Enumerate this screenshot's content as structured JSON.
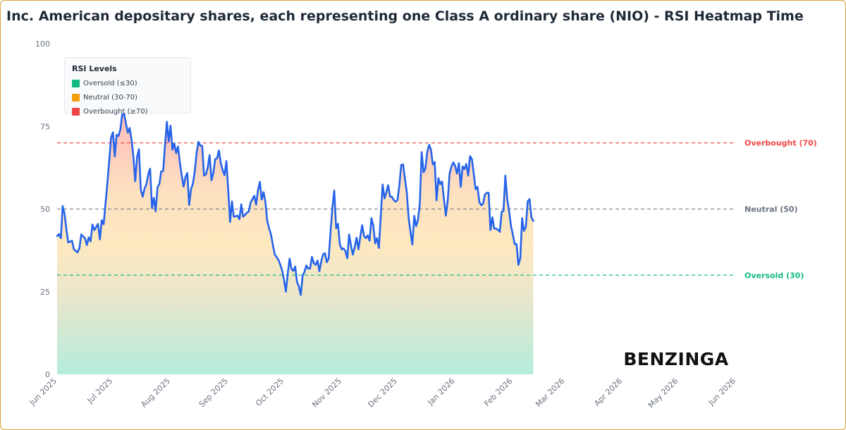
{
  "title": "Inc. American depositary shares, each representing one Class A ordinary share (NIO) - RSI Heatmap Time",
  "brand": "BENZINGA",
  "legend": {
    "title": "RSI Levels",
    "items": [
      {
        "label": "Oversold (≤30)",
        "color": "#10b981"
      },
      {
        "label": "Neutral (30-70)",
        "color": "#f59e0b"
      },
      {
        "label": "Overbought (≥70)",
        "color": "#ef4444"
      }
    ]
  },
  "chart_data": {
    "type": "area",
    "title": "Inc. American depositary shares, each representing one Class A ordinary share (NIO) - RSI Heatmap Time",
    "xlabel": "",
    "ylabel": "",
    "ylim": [
      0,
      100
    ],
    "yticks": [
      "0",
      "25",
      "50",
      "75",
      "100"
    ],
    "x_range": [
      "2025-06-01",
      "2026-06-01"
    ],
    "xticks": [
      {
        "label": "Jun 2025",
        "date": "2025-06-01"
      },
      {
        "label": "Jul 2025",
        "date": "2025-07-01"
      },
      {
        "label": "Aug 2025",
        "date": "2025-08-01"
      },
      {
        "label": "Sep 2025",
        "date": "2025-09-01"
      },
      {
        "label": "Oct 2025",
        "date": "2025-10-01"
      },
      {
        "label": "Nov 2025",
        "date": "2025-11-01"
      },
      {
        "label": "Dec 2025",
        "date": "2025-12-01"
      },
      {
        "label": "Jan 2026",
        "date": "2026-01-01"
      },
      {
        "label": "Feb 2026",
        "date": "2026-02-01"
      },
      {
        "label": "Mar 2026",
        "date": "2026-03-01"
      },
      {
        "label": "Apr 2026",
        "date": "2026-04-01"
      },
      {
        "label": "May 2026",
        "date": "2026-05-01"
      },
      {
        "label": "Jun 2026",
        "date": "2026-06-01"
      }
    ],
    "reference_lines": [
      {
        "label": "Overbought (70)",
        "value": 70,
        "color": "#ef4444"
      },
      {
        "label": "Neutral (50)",
        "value": 50,
        "color": "#6b7280"
      },
      {
        "label": "Oversold (30)",
        "value": 30,
        "color": "#10b981"
      }
    ],
    "line_color": "#2563eb",
    "grid": false,
    "legend_position": "top-left",
    "series": [
      {
        "points": [
          [
            "2025-06-01",
            41.8
          ],
          [
            "2025-06-02",
            42.4
          ],
          [
            "2025-06-03",
            41.2
          ],
          [
            "2025-06-04",
            50.9
          ],
          [
            "2025-06-05",
            48.5
          ],
          [
            "2025-06-06",
            43.8
          ],
          [
            "2025-06-07",
            39.9
          ],
          [
            "2025-06-09",
            40.4
          ],
          [
            "2025-06-10",
            37.9
          ],
          [
            "2025-06-11",
            37.3
          ],
          [
            "2025-06-12",
            36.9
          ],
          [
            "2025-06-13",
            38.2
          ],
          [
            "2025-06-14",
            42.3
          ],
          [
            "2025-06-16",
            41.1
          ],
          [
            "2025-06-17",
            39.1
          ],
          [
            "2025-06-18",
            41.4
          ],
          [
            "2025-06-19",
            40.2
          ],
          [
            "2025-06-20",
            45.3
          ],
          [
            "2025-06-21",
            43.6
          ],
          [
            "2025-06-23",
            45.5
          ],
          [
            "2025-06-24",
            40.8
          ],
          [
            "2025-06-25",
            46.6
          ],
          [
            "2025-06-26",
            45.4
          ],
          [
            "2025-06-28",
            57.6
          ],
          [
            "2025-06-29",
            64.6
          ],
          [
            "2025-06-30",
            71.5
          ],
          [
            "2025-07-01",
            73.2
          ],
          [
            "2025-07-02",
            65.9
          ],
          [
            "2025-07-03",
            72.4
          ],
          [
            "2025-07-04",
            72.1
          ],
          [
            "2025-07-05",
            74.1
          ],
          [
            "2025-07-06",
            78.5
          ],
          [
            "2025-07-07",
            78.9
          ],
          [
            "2025-07-08",
            75.9
          ],
          [
            "2025-07-09",
            73.1
          ],
          [
            "2025-07-10",
            74.5
          ],
          [
            "2025-07-11",
            71.1
          ],
          [
            "2025-07-12",
            65.9
          ],
          [
            "2025-07-13",
            58.4
          ],
          [
            "2025-07-14",
            65.7
          ],
          [
            "2025-07-15",
            68.1
          ],
          [
            "2025-07-16",
            55.9
          ],
          [
            "2025-07-17",
            53.7
          ],
          [
            "2025-07-18",
            56.2
          ],
          [
            "2025-07-19",
            57.4
          ],
          [
            "2025-07-20",
            60.5
          ],
          [
            "2025-07-21",
            62.2
          ],
          [
            "2025-07-22",
            50.3
          ],
          [
            "2025-07-23",
            53.4
          ],
          [
            "2025-07-24",
            49.3
          ],
          [
            "2025-07-25",
            56.6
          ],
          [
            "2025-07-26",
            57.6
          ],
          [
            "2025-07-27",
            61.4
          ],
          [
            "2025-07-28",
            61.5
          ],
          [
            "2025-07-29",
            69.1
          ],
          [
            "2025-07-30",
            76.4
          ],
          [
            "2025-07-31",
            70.4
          ],
          [
            "2025-08-01",
            75.2
          ],
          [
            "2025-08-02",
            67.9
          ],
          [
            "2025-08-03",
            69.9
          ],
          [
            "2025-08-04",
            66.9
          ],
          [
            "2025-08-05",
            68.9
          ],
          [
            "2025-08-06",
            64.1
          ],
          [
            "2025-08-07",
            60.1
          ],
          [
            "2025-08-08",
            56.8
          ],
          [
            "2025-08-09",
            59.6
          ],
          [
            "2025-08-10",
            60.9
          ],
          [
            "2025-08-11",
            51.2
          ],
          [
            "2025-08-12",
            56.1
          ],
          [
            "2025-08-13",
            57.6
          ],
          [
            "2025-08-14",
            61.3
          ],
          [
            "2025-08-15",
            66.9
          ],
          [
            "2025-08-16",
            70.3
          ],
          [
            "2025-08-17",
            69.2
          ],
          [
            "2025-08-18",
            69.1
          ],
          [
            "2025-08-19",
            60.1
          ],
          [
            "2025-08-20",
            60.5
          ],
          [
            "2025-08-21",
            62.6
          ],
          [
            "2025-08-22",
            66.3
          ],
          [
            "2025-08-23",
            58.7
          ],
          [
            "2025-08-24",
            60.9
          ],
          [
            "2025-08-25",
            65.1
          ],
          [
            "2025-08-26",
            65.3
          ],
          [
            "2025-08-27",
            67.7
          ],
          [
            "2025-08-28",
            63.9
          ],
          [
            "2025-08-29",
            61.8
          ],
          [
            "2025-08-30",
            60.2
          ],
          [
            "2025-08-31",
            64.5
          ],
          [
            "2025-09-01",
            55.7
          ],
          [
            "2025-09-02",
            46.1
          ],
          [
            "2025-09-03",
            52.3
          ],
          [
            "2025-09-04",
            47.7
          ],
          [
            "2025-09-05",
            47.8
          ],
          [
            "2025-09-06",
            48.0
          ],
          [
            "2025-09-07",
            46.9
          ],
          [
            "2025-09-08",
            51.4
          ],
          [
            "2025-09-09",
            47.7
          ],
          [
            "2025-09-10",
            48.2
          ],
          [
            "2025-09-11",
            48.9
          ],
          [
            "2025-09-12",
            49.2
          ],
          [
            "2025-09-13",
            51.9
          ],
          [
            "2025-09-14",
            53.0
          ],
          [
            "2025-09-15",
            54.0
          ],
          [
            "2025-09-16",
            51.3
          ],
          [
            "2025-09-17",
            55.6
          ],
          [
            "2025-09-18",
            58.2
          ],
          [
            "2025-09-19",
            52.9
          ],
          [
            "2025-09-20",
            55.1
          ],
          [
            "2025-09-21",
            52.0
          ],
          [
            "2025-09-22",
            46.4
          ],
          [
            "2025-09-23",
            44.1
          ],
          [
            "2025-09-24",
            42.3
          ],
          [
            "2025-09-25",
            39.2
          ],
          [
            "2025-09-26",
            36.3
          ],
          [
            "2025-09-28",
            34.6
          ],
          [
            "2025-09-29",
            33.1
          ],
          [
            "2025-09-30",
            31.4
          ],
          [
            "2025-10-01",
            28.6
          ],
          [
            "2025-10-02",
            25.0
          ],
          [
            "2025-10-03",
            30.6
          ],
          [
            "2025-10-04",
            35.0
          ],
          [
            "2025-10-05",
            31.9
          ],
          [
            "2025-10-06",
            31.3
          ],
          [
            "2025-10-07",
            32.6
          ],
          [
            "2025-10-08",
            28.0
          ],
          [
            "2025-10-09",
            26.5
          ],
          [
            "2025-10-10",
            24.0
          ],
          [
            "2025-10-11",
            29.9
          ],
          [
            "2025-10-12",
            31.0
          ],
          [
            "2025-10-13",
            32.9
          ],
          [
            "2025-10-14",
            32.0
          ],
          [
            "2025-10-15",
            32.0
          ],
          [
            "2025-10-16",
            35.5
          ],
          [
            "2025-10-17",
            33.6
          ],
          [
            "2025-10-18",
            33.1
          ],
          [
            "2025-10-19",
            34.4
          ],
          [
            "2025-10-20",
            31.2
          ],
          [
            "2025-10-21",
            34.1
          ],
          [
            "2025-10-22",
            36.3
          ],
          [
            "2025-10-23",
            36.6
          ],
          [
            "2025-10-24",
            33.9
          ],
          [
            "2025-10-25",
            35.1
          ],
          [
            "2025-10-26",
            42.9
          ],
          [
            "2025-10-27",
            50.4
          ],
          [
            "2025-10-28",
            55.6
          ],
          [
            "2025-10-29",
            44.2
          ],
          [
            "2025-10-30",
            45.5
          ],
          [
            "2025-10-31",
            39.4
          ],
          [
            "2025-11-01",
            37.8
          ],
          [
            "2025-11-02",
            38.1
          ],
          [
            "2025-11-03",
            37.3
          ],
          [
            "2025-11-04",
            35.1
          ],
          [
            "2025-11-05",
            42.3
          ],
          [
            "2025-11-06",
            38.9
          ],
          [
            "2025-11-07",
            36.2
          ],
          [
            "2025-11-08",
            38.5
          ],
          [
            "2025-11-09",
            41.3
          ],
          [
            "2025-11-10",
            37.8
          ],
          [
            "2025-11-11",
            41.6
          ],
          [
            "2025-11-12",
            45.1
          ],
          [
            "2025-11-13",
            41.9
          ],
          [
            "2025-11-14",
            41.2
          ],
          [
            "2025-11-15",
            42.0
          ],
          [
            "2025-11-16",
            40.4
          ],
          [
            "2025-11-17",
            47.2
          ],
          [
            "2025-11-18",
            44.9
          ],
          [
            "2025-11-19",
            39.6
          ],
          [
            "2025-11-20",
            41.2
          ],
          [
            "2025-11-21",
            38.2
          ],
          [
            "2025-11-22",
            47.9
          ],
          [
            "2025-11-23",
            57.4
          ],
          [
            "2025-11-24",
            53.2
          ],
          [
            "2025-11-25",
            55.0
          ],
          [
            "2025-11-26",
            57.2
          ],
          [
            "2025-11-27",
            53.7
          ],
          [
            "2025-11-28",
            53.7
          ],
          [
            "2025-11-29",
            52.7
          ],
          [
            "2025-11-30",
            52.2
          ],
          [
            "2025-12-01",
            52.7
          ],
          [
            "2025-12-02",
            57.2
          ],
          [
            "2025-12-03",
            63.3
          ],
          [
            "2025-12-04",
            63.5
          ],
          [
            "2025-12-05",
            59.1
          ],
          [
            "2025-12-06",
            55.1
          ],
          [
            "2025-12-07",
            47.4
          ],
          [
            "2025-12-08",
            43.0
          ],
          [
            "2025-12-09",
            39.3
          ],
          [
            "2025-12-10",
            47.9
          ],
          [
            "2025-12-11",
            44.8
          ],
          [
            "2025-12-12",
            46.6
          ],
          [
            "2025-12-13",
            51.6
          ],
          [
            "2025-12-14",
            67.2
          ],
          [
            "2025-12-15",
            61.1
          ],
          [
            "2025-12-16",
            62.3
          ],
          [
            "2025-12-17",
            67.2
          ],
          [
            "2025-12-18",
            69.4
          ],
          [
            "2025-12-19",
            67.9
          ],
          [
            "2025-12-20",
            63.5
          ],
          [
            "2025-12-21",
            64.2
          ],
          [
            "2025-12-22",
            52.6
          ],
          [
            "2025-12-23",
            59.3
          ],
          [
            "2025-12-24",
            57.5
          ],
          [
            "2025-12-25",
            58.3
          ],
          [
            "2025-12-26",
            52.9
          ],
          [
            "2025-12-27",
            48.0
          ],
          [
            "2025-12-28",
            52.6
          ],
          [
            "2025-12-29",
            60.7
          ],
          [
            "2025-12-30",
            62.8
          ],
          [
            "2025-12-31",
            64.1
          ],
          [
            "2026-01-01",
            63.0
          ],
          [
            "2026-01-02",
            60.7
          ],
          [
            "2026-01-03",
            63.9
          ],
          [
            "2026-01-04",
            56.7
          ],
          [
            "2026-01-05",
            62.9
          ],
          [
            "2026-01-06",
            62.1
          ],
          [
            "2026-01-07",
            63.6
          ],
          [
            "2026-01-08",
            60.1
          ],
          [
            "2026-01-09",
            66.0
          ],
          [
            "2026-01-10",
            65.1
          ],
          [
            "2026-01-11",
            60.6
          ],
          [
            "2026-01-12",
            56.0
          ],
          [
            "2026-01-13",
            56.7
          ],
          [
            "2026-01-14",
            52.2
          ],
          [
            "2026-01-15",
            51.1
          ],
          [
            "2026-01-16",
            51.6
          ],
          [
            "2026-01-17",
            54.3
          ],
          [
            "2026-01-18",
            54.9
          ],
          [
            "2026-01-19",
            54.9
          ],
          [
            "2026-01-20",
            43.6
          ],
          [
            "2026-01-21",
            47.5
          ],
          [
            "2026-01-22",
            44.1
          ],
          [
            "2026-01-23",
            44.1
          ],
          [
            "2026-01-24",
            43.7
          ],
          [
            "2026-01-25",
            43.1
          ],
          [
            "2026-01-26",
            49.1
          ],
          [
            "2026-01-27",
            49.4
          ],
          [
            "2026-01-28",
            60.1
          ],
          [
            "2026-01-29",
            52.9
          ],
          [
            "2026-01-30",
            49.4
          ],
          [
            "2026-01-31",
            44.9
          ],
          [
            "2026-02-01",
            42.3
          ],
          [
            "2026-02-02",
            39.4
          ],
          [
            "2026-02-03",
            39.4
          ],
          [
            "2026-02-04",
            33.1
          ],
          [
            "2026-02-05",
            35.1
          ],
          [
            "2026-02-06",
            47.2
          ],
          [
            "2026-02-07",
            43.4
          ],
          [
            "2026-02-08",
            44.6
          ],
          [
            "2026-02-09",
            52.3
          ],
          [
            "2026-02-10",
            53.0
          ],
          [
            "2026-02-11",
            47.5
          ],
          [
            "2026-02-12",
            46.4
          ]
        ]
      }
    ]
  }
}
